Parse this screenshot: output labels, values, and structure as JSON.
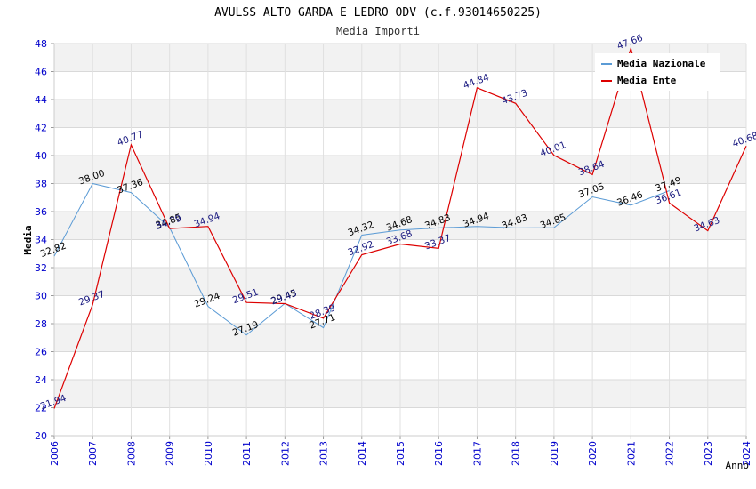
{
  "chart_data": {
    "type": "line",
    "title": "AVULSS ALTO GARDA E LEDRO ODV (c.f.93014650225)",
    "subtitle": "Media Importi",
    "xlabel": "Anno",
    "ylabel": "Media",
    "ylim": [
      20,
      48
    ],
    "y_ticks": [
      "20",
      "22",
      "24",
      "26",
      "28",
      "30",
      "32",
      "34",
      "36",
      "38",
      "40",
      "42",
      "44",
      "46",
      "48"
    ],
    "categories": [
      "2006",
      "2007",
      "2008",
      "2009",
      "2010",
      "2011",
      "2012",
      "2013",
      "2014",
      "2015",
      "2016",
      "2017",
      "2018",
      "2019",
      "2020",
      "2021",
      "2022",
      "2023",
      "2024"
    ],
    "grid": true,
    "legend_position": "top-right",
    "series": [
      {
        "name": "Media Nazionale",
        "color": "#5b9bd5",
        "values": [
          32.82,
          38.0,
          37.36,
          34.85,
          29.24,
          27.19,
          29.45,
          27.71,
          34.32,
          34.68,
          34.83,
          34.94,
          34.83,
          34.85,
          37.05,
          36.46,
          37.49,
          null,
          null
        ],
        "labels": [
          "32.82",
          "38.00",
          "37.36",
          "34.85",
          "29.24",
          "27.19",
          "29.45",
          "27.71",
          "34.32",
          "34.68",
          "34.83",
          "34.94",
          "34.83",
          "34.85",
          "37.05",
          "36.46",
          "37.49",
          "",
          ""
        ]
      },
      {
        "name": "Media Ente",
        "color": "#dd0000",
        "values": [
          21.94,
          29.37,
          40.77,
          34.79,
          34.94,
          29.51,
          29.43,
          28.39,
          32.92,
          33.68,
          33.37,
          44.84,
          43.73,
          40.01,
          38.64,
          47.66,
          36.61,
          34.63,
          40.68
        ],
        "labels": [
          "21.94",
          "29.37",
          "40.77",
          "34.79",
          "34.94",
          "29.51",
          "29.43",
          "28.39",
          "32.92",
          "33.68",
          "33.37",
          "44.84",
          "43.73",
          "40.01",
          "38.64",
          "47.66",
          "36.61",
          "34.63",
          "40.68"
        ]
      }
    ]
  }
}
